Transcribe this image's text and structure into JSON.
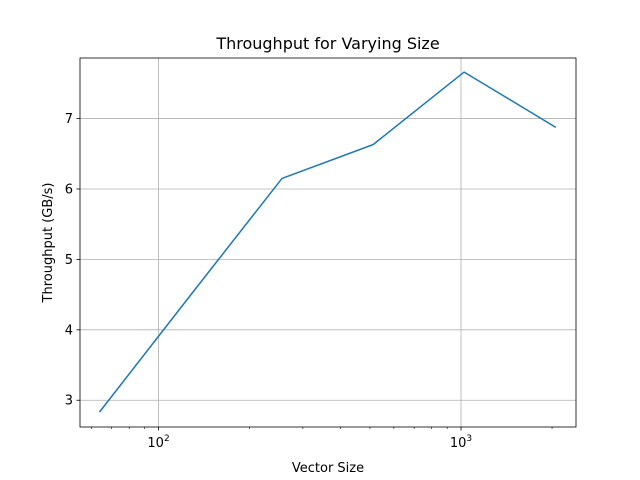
{
  "chart_data": {
    "type": "line",
    "title": "Throughput for Varying Size",
    "xlabel": "Vector Size",
    "ylabel": "Throughput (GB/s)",
    "x_scale": "log",
    "x_major_ticks": [
      {
        "value": 100,
        "base": "10",
        "exp": "2"
      },
      {
        "value": 1000,
        "base": "10",
        "exp": "3"
      }
    ],
    "y_ticks": [
      3,
      4,
      5,
      6,
      7
    ],
    "y_tick_labels": [
      "3",
      "4",
      "5",
      "6",
      "7"
    ],
    "xlim": [
      55,
      2400
    ],
    "ylim": [
      2.62,
      7.86
    ],
    "grid": true,
    "series": [
      {
        "color": "#1f77b4",
        "x": [
          64,
          128,
          256,
          512,
          1024,
          2048
        ],
        "y": [
          2.84,
          4.5,
          6.15,
          6.63,
          7.66,
          6.88
        ]
      }
    ]
  }
}
